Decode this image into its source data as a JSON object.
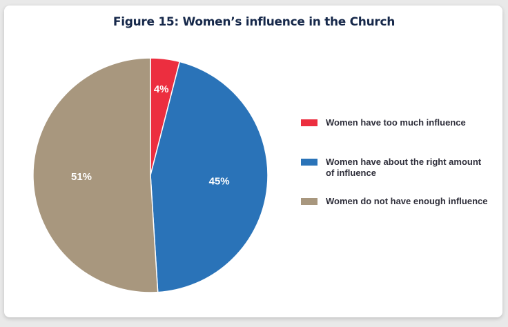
{
  "title": "Figure 15: Women’s influence in the Church",
  "chart_data": {
    "type": "pie",
    "title": "Figure 15: Women’s influence in the Church",
    "slices": [
      {
        "label": "Women have too much influence",
        "value": 4,
        "display": "4%",
        "color": "#ec2e3f"
      },
      {
        "label": "Women have about the right amount of influence",
        "value": 45,
        "display": "45%",
        "color": "#2a73b8"
      },
      {
        "label": "Women do not have enough influence",
        "value": 51,
        "display": "51%",
        "color": "#a8977e"
      }
    ],
    "start_angle_deg": 0,
    "direction": "clockwise",
    "legend_position": "right"
  }
}
